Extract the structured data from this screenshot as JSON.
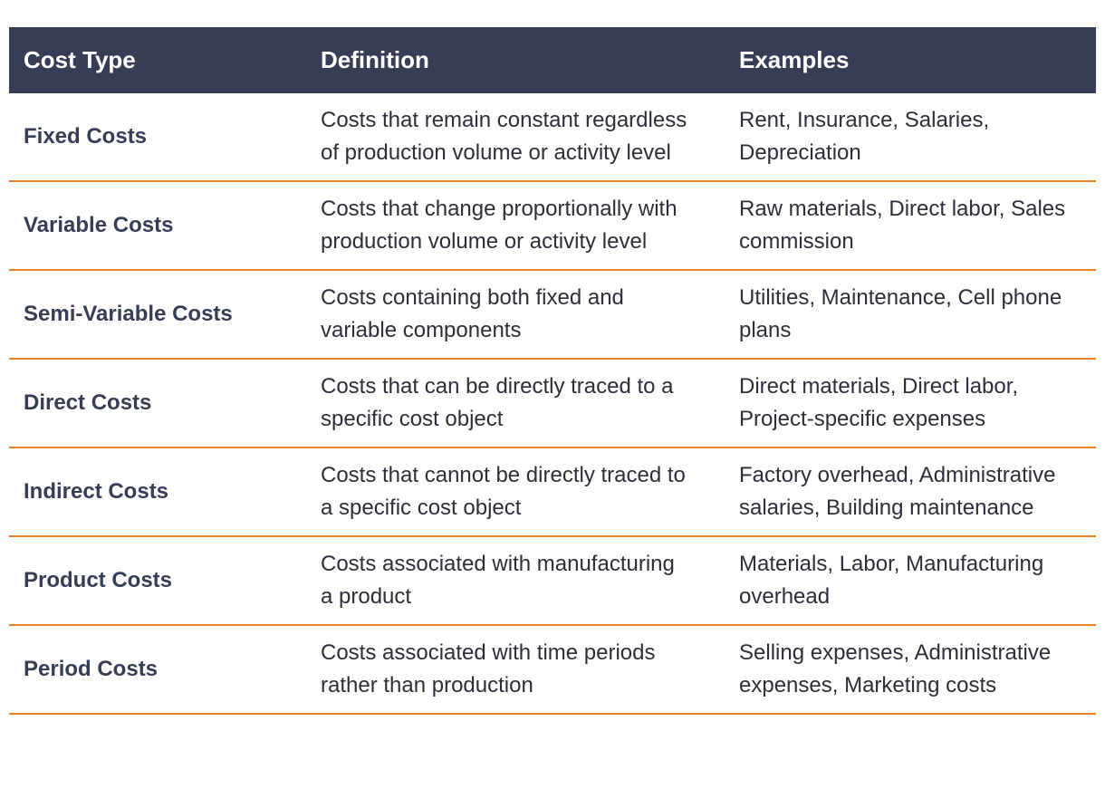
{
  "table": {
    "headers": {
      "cost_type": "Cost Type",
      "definition": "Definition",
      "examples": "Examples"
    },
    "rows": [
      {
        "cost_type": "Fixed Costs",
        "definition": "Costs that remain constant regardless of production volume or activity level",
        "examples": "Rent, Insurance, Salaries, Depreciation"
      },
      {
        "cost_type": "Variable Costs",
        "definition": "Costs that change proportionally with production volume or activity level",
        "examples": "Raw materials, Direct labor, Sales commission"
      },
      {
        "cost_type": "Semi-Variable Costs",
        "definition": "Costs containing both fixed and variable components",
        "examples": "Utilities, Maintenance, Cell phone plans"
      },
      {
        "cost_type": "Direct Costs",
        "definition": "Costs that can be directly traced to a specific cost object",
        "examples": "Direct materials, Direct labor, Project-specific expenses"
      },
      {
        "cost_type": "Indirect Costs",
        "definition": "Costs that cannot be directly traced to a specific cost object",
        "examples": "Factory overhead, Administrative salaries, Building maintenance"
      },
      {
        "cost_type": "Product Costs",
        "definition": "Costs associated with manufacturing a product",
        "examples": "Materials, Labor, Manufacturing overhead"
      },
      {
        "cost_type": "Period Costs",
        "definition": "Costs associated with time periods rather than production",
        "examples": "Selling expenses, Administrative expenses, Marketing costs"
      }
    ]
  },
  "colors": {
    "header_bg": "#363d55",
    "row_divider": "#e8832a",
    "type_text": "#363d55"
  }
}
